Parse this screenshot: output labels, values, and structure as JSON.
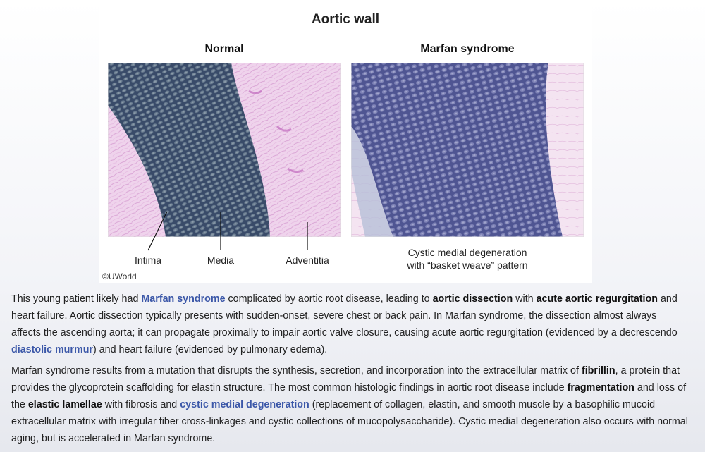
{
  "figure": {
    "title": "Aortic wall",
    "panel_left_title": "Normal",
    "panel_right_title": "Marfan syndrome",
    "label_intima": "Intima",
    "label_media": "Media",
    "label_adventitia": "Adventitia",
    "caption_line1": "Cystic medial degeneration",
    "caption_line2": "with “basket weave” pattern",
    "copyright": "©UWorld",
    "colors": {
      "media_stain": "#3a4a70",
      "adventitia_stain": "#e9c7e6"
    }
  },
  "paragraph1": {
    "t1": "This young patient likely had ",
    "link1": "Marfan syndrome",
    "t2": " complicated by aortic root disease, leading to ",
    "b1": "aortic dissection",
    "t3": " with ",
    "b2": "acute aortic regurgitation",
    "t4": " and heart failure.  Aortic dissection typically presents with sudden-onset, severe chest or back pain.  In Marfan syndrome, the dissection almost always affects the ascending aorta; it can propagate proximally to impair aortic valve closure, causing acute aortic regurgitation (evidenced by a decrescendo ",
    "link2": "diastolic murmur",
    "t5": ") and heart failure (evidenced by pulmonary edema)."
  },
  "paragraph2": {
    "t1": "Marfan syndrome results from a mutation that disrupts the synthesis, secretion, and incorporation into the extracellular matrix of ",
    "b1": "fibrillin",
    "t2": ", a protein that provides the glycoprotein scaffolding for elastin structure.  The most common histologic findings in aortic root disease include ",
    "b2": "fragmentation",
    "t3": " and loss of the ",
    "b3": "elastic lamellae",
    "t4": " with fibrosis and ",
    "link1": "cystic medial degeneration",
    "t5": " (replacement of collagen, elastin, and smooth muscle by a basophilic mucoid extracellular matrix with irregular fiber cross-linkages and cystic collections of mucopolysaccharide).  Cystic medial degeneration also occurs with normal aging, but is accelerated in Marfan syndrome."
  }
}
